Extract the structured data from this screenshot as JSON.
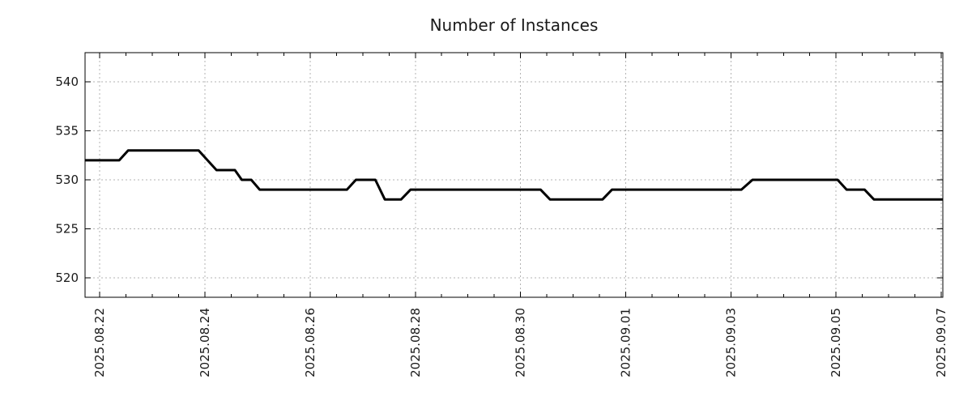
{
  "chart_data": {
    "type": "line",
    "title": "Number of Instances",
    "x_axis": {
      "unit": "days_since_2025-08-22_00:00",
      "range": [
        -0.28,
        16.03
      ],
      "major_ticks": [
        {
          "d": 0,
          "label": "2025.08.22"
        },
        {
          "d": 2,
          "label": "2025.08.24"
        },
        {
          "d": 4,
          "label": "2025.08.26"
        },
        {
          "d": 6,
          "label": "2025.08.28"
        },
        {
          "d": 8,
          "label": "2025.08.30"
        },
        {
          "d": 10,
          "label": "2025.09.01"
        },
        {
          "d": 12,
          "label": "2025.09.03"
        },
        {
          "d": 14,
          "label": "2025.09.05"
        },
        {
          "d": 16,
          "label": "2025.09.07"
        }
      ],
      "minor_tick_step": 0.5
    },
    "y_axis": {
      "range": [
        518,
        543
      ],
      "major_ticks": [
        520,
        525,
        530,
        535,
        540
      ]
    },
    "grid": {
      "show": true,
      "color": "#b3b3b3",
      "style": "dotted"
    },
    "legend": {
      "show": false
    },
    "series": [
      {
        "name": "instances",
        "color": "#000000",
        "line_width": 3,
        "points": [
          [
            -0.28,
            532
          ],
          [
            0.37,
            532
          ],
          [
            0.54,
            533
          ],
          [
            1.88,
            533
          ],
          [
            2.22,
            531
          ],
          [
            2.57,
            531
          ],
          [
            2.7,
            530
          ],
          [
            2.88,
            530
          ],
          [
            3.04,
            529
          ],
          [
            4.7,
            529
          ],
          [
            4.87,
            530
          ],
          [
            5.24,
            530
          ],
          [
            5.42,
            528
          ],
          [
            5.73,
            528
          ],
          [
            5.91,
            529
          ],
          [
            8.38,
            529
          ],
          [
            8.56,
            528
          ],
          [
            9.56,
            528
          ],
          [
            9.74,
            529
          ],
          [
            12.2,
            529
          ],
          [
            12.41,
            530
          ],
          [
            14.03,
            530
          ],
          [
            14.2,
            529
          ],
          [
            14.54,
            529
          ],
          [
            14.72,
            528
          ],
          [
            16.03,
            528
          ]
        ]
      }
    ],
    "colors": {
      "background": "#ffffff",
      "axis": "#000000",
      "text": "#1a1a1a"
    }
  }
}
